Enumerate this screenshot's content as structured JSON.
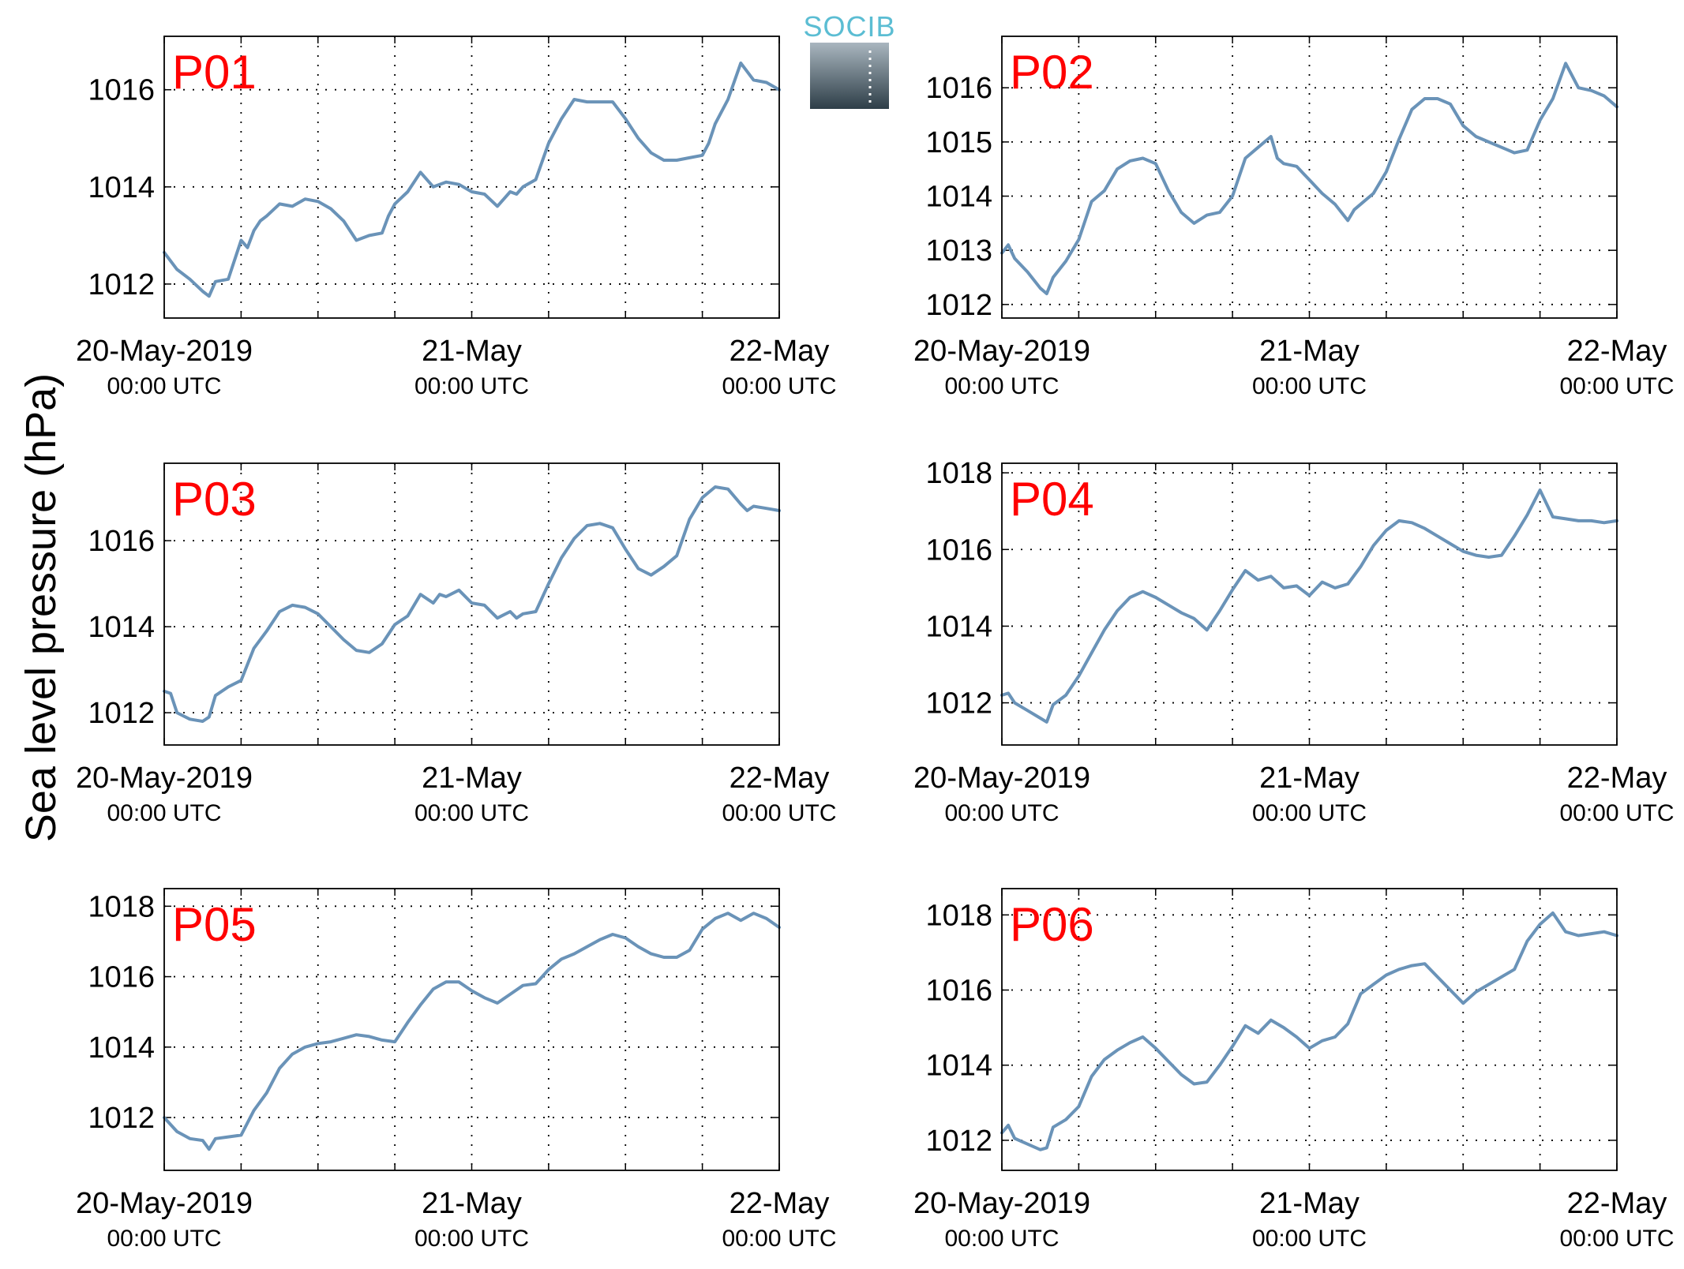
{
  "figure": {
    "ylabel": "Sea level pressure (hPa)",
    "logo": "SOCIB"
  },
  "colors": {
    "line": "#6a93b8",
    "title": "#ff0000",
    "grid": "#000000",
    "logo_text": "#5bbdd3",
    "logo_dark": "#2e3e48",
    "logo_light": "#a9b6bf"
  },
  "chart_data": [
    {
      "type": "line",
      "title": "P01",
      "x_unit": "hours since 20-May-2019 00:00 UTC",
      "xlim": [
        0,
        48
      ],
      "ylim": [
        1011.3,
        1017.1
      ],
      "yticks": [
        1012,
        1014,
        1016
      ],
      "xtick_labels": [
        {
          "date": "20-May-2019",
          "time": "00:00 UTC"
        },
        {
          "date": "21-May",
          "time": "00:00 UTC"
        },
        {
          "date": "22-May",
          "time": "00:00 UTC"
        }
      ],
      "grid": true,
      "x": [
        0,
        1,
        2,
        3,
        3.5,
        4,
        5,
        6,
        6.5,
        7,
        7.5,
        8,
        9,
        10,
        11,
        12,
        13,
        14,
        15,
        16,
        17,
        17.5,
        18,
        19,
        20,
        21,
        22,
        23,
        24,
        25,
        26,
        27,
        27.5,
        28,
        29,
        30,
        31,
        32,
        33,
        34,
        35,
        36,
        37,
        38,
        39,
        40,
        41,
        42,
        42.5,
        43,
        44,
        45,
        46,
        47,
        48
      ],
      "y": [
        1012.65,
        1012.3,
        1012.1,
        1011.85,
        1011.75,
        1012.05,
        1012.1,
        1012.9,
        1012.75,
        1013.1,
        1013.3,
        1013.4,
        1013.65,
        1013.6,
        1013.75,
        1013.7,
        1013.55,
        1013.3,
        1012.9,
        1013.0,
        1013.05,
        1013.4,
        1013.65,
        1013.9,
        1014.3,
        1014.0,
        1014.1,
        1014.05,
        1013.9,
        1013.85,
        1013.6,
        1013.9,
        1013.85,
        1014.0,
        1014.15,
        1014.9,
        1015.4,
        1015.8,
        1015.75,
        1015.75,
        1015.75,
        1015.4,
        1015.0,
        1014.7,
        1014.55,
        1014.55,
        1014.6,
        1014.65,
        1014.9,
        1015.3,
        1015.8,
        1016.55,
        1016.2,
        1016.15,
        1016.0
      ]
    },
    {
      "type": "line",
      "title": "P02",
      "x_unit": "hours since 20-May-2019 00:00 UTC",
      "xlim": [
        0,
        48
      ],
      "ylim": [
        1011.75,
        1016.95
      ],
      "yticks": [
        1012,
        1013,
        1014,
        1015,
        1016
      ],
      "xtick_labels": [
        {
          "date": "20-May-2019",
          "time": "00:00 UTC"
        },
        {
          "date": "21-May",
          "time": "00:00 UTC"
        },
        {
          "date": "22-May",
          "time": "00:00 UTC"
        }
      ],
      "grid": true,
      "x": [
        0,
        0.5,
        1,
        2,
        3,
        3.5,
        4,
        5,
        6,
        7,
        8,
        9,
        10,
        11,
        12,
        13,
        14,
        15,
        16,
        17,
        18,
        19,
        20,
        21,
        21.5,
        22,
        23,
        24,
        25,
        26,
        27,
        27.5,
        28,
        29,
        30,
        31,
        32,
        33,
        34,
        35,
        36,
        37,
        38,
        39,
        40,
        41,
        42,
        43,
        44,
        45,
        46,
        47,
        48
      ],
      "y": [
        1012.95,
        1013.1,
        1012.85,
        1012.6,
        1012.3,
        1012.2,
        1012.5,
        1012.8,
        1013.2,
        1013.9,
        1014.1,
        1014.5,
        1014.65,
        1014.7,
        1014.6,
        1014.1,
        1013.7,
        1013.5,
        1013.65,
        1013.7,
        1014.0,
        1014.7,
        1014.9,
        1015.1,
        1014.7,
        1014.6,
        1014.55,
        1014.3,
        1014.05,
        1013.85,
        1013.55,
        1013.75,
        1013.85,
        1014.05,
        1014.45,
        1015.05,
        1015.6,
        1015.8,
        1015.8,
        1015.7,
        1015.3,
        1015.1,
        1015.0,
        1014.9,
        1014.8,
        1014.85,
        1015.4,
        1015.8,
        1016.45,
        1016.0,
        1015.95,
        1015.85,
        1015.65
      ]
    },
    {
      "type": "line",
      "title": "P03",
      "x_unit": "hours since 20-May-2019 00:00 UTC",
      "xlim": [
        0,
        48
      ],
      "ylim": [
        1011.25,
        1017.8
      ],
      "yticks": [
        1012,
        1014,
        1016
      ],
      "xtick_labels": [
        {
          "date": "20-May-2019",
          "time": "00:00 UTC"
        },
        {
          "date": "21-May",
          "time": "00:00 UTC"
        },
        {
          "date": "22-May",
          "time": "00:00 UTC"
        }
      ],
      "grid": true,
      "x": [
        0,
        0.5,
        1,
        2,
        3,
        3.5,
        4,
        5,
        6,
        7,
        8,
        9,
        10,
        11,
        12,
        13,
        14,
        15,
        16,
        17,
        18,
        19,
        20,
        21,
        21.5,
        22,
        23,
        24,
        25,
        26,
        27,
        27.5,
        28,
        29,
        30,
        31,
        32,
        33,
        34,
        35,
        36,
        37,
        38,
        39,
        40,
        41,
        42,
        43,
        44,
        45,
        45.5,
        46,
        47,
        48
      ],
      "y": [
        1012.5,
        1012.45,
        1012.0,
        1011.85,
        1011.8,
        1011.9,
        1012.4,
        1012.6,
        1012.75,
        1013.5,
        1013.9,
        1014.35,
        1014.5,
        1014.45,
        1014.3,
        1014.0,
        1013.7,
        1013.45,
        1013.4,
        1013.6,
        1014.05,
        1014.25,
        1014.75,
        1014.55,
        1014.75,
        1014.7,
        1014.85,
        1014.55,
        1014.5,
        1014.2,
        1014.35,
        1014.2,
        1014.3,
        1014.35,
        1015.0,
        1015.6,
        1016.05,
        1016.35,
        1016.4,
        1016.3,
        1015.8,
        1015.35,
        1015.2,
        1015.4,
        1015.65,
        1016.5,
        1017.0,
        1017.25,
        1017.2,
        1016.85,
        1016.7,
        1016.8,
        1016.75,
        1016.7
      ]
    },
    {
      "type": "line",
      "title": "P04",
      "x_unit": "hours since 20-May-2019 00:00 UTC",
      "xlim": [
        0,
        48
      ],
      "ylim": [
        1010.9,
        1018.25
      ],
      "yticks": [
        1012,
        1014,
        1016,
        1018
      ],
      "xtick_labels": [
        {
          "date": "20-May-2019",
          "time": "00:00 UTC"
        },
        {
          "date": "21-May",
          "time": "00:00 UTC"
        },
        {
          "date": "22-May",
          "time": "00:00 UTC"
        }
      ],
      "grid": true,
      "x": [
        0,
        0.5,
        1,
        2,
        3,
        3.5,
        4,
        5,
        6,
        7,
        8,
        9,
        10,
        11,
        12,
        13,
        14,
        15,
        16,
        17,
        18,
        19,
        20,
        21,
        22,
        23,
        24,
        25,
        26,
        27,
        28,
        29,
        30,
        31,
        32,
        33,
        34,
        35,
        36,
        37,
        38,
        39,
        40,
        41,
        42,
        43,
        44,
        45,
        46,
        47,
        48
      ],
      "y": [
        1012.2,
        1012.25,
        1012.0,
        1011.8,
        1011.6,
        1011.5,
        1011.95,
        1012.2,
        1012.7,
        1013.3,
        1013.9,
        1014.4,
        1014.75,
        1014.9,
        1014.75,
        1014.55,
        1014.35,
        1014.2,
        1013.9,
        1014.4,
        1014.95,
        1015.45,
        1015.2,
        1015.3,
        1015.0,
        1015.05,
        1014.8,
        1015.15,
        1015.0,
        1015.1,
        1015.55,
        1016.1,
        1016.5,
        1016.75,
        1016.7,
        1016.55,
        1016.35,
        1016.15,
        1015.95,
        1015.85,
        1015.8,
        1015.85,
        1016.35,
        1016.9,
        1017.55,
        1016.85,
        1016.8,
        1016.75,
        1016.75,
        1016.7,
        1016.75
      ]
    },
    {
      "type": "line",
      "title": "P05",
      "x_unit": "hours since 20-May-2019 00:00 UTC",
      "xlim": [
        0,
        48
      ],
      "ylim": [
        1010.5,
        1018.5
      ],
      "yticks": [
        1012,
        1014,
        1016,
        1018
      ],
      "xtick_labels": [
        {
          "date": "20-May-2019",
          "time": "00:00 UTC"
        },
        {
          "date": "21-May",
          "time": "00:00 UTC"
        },
        {
          "date": "22-May",
          "time": "00:00 UTC"
        }
      ],
      "grid": true,
      "x": [
        0,
        1,
        2,
        3,
        3.5,
        4,
        5,
        6,
        7,
        8,
        9,
        10,
        11,
        12,
        13,
        14,
        15,
        16,
        17,
        18,
        19,
        20,
        21,
        22,
        23,
        24,
        25,
        26,
        27,
        28,
        29,
        30,
        31,
        32,
        33,
        34,
        35,
        36,
        37,
        38,
        39,
        40,
        41,
        42,
        43,
        44,
        45,
        46,
        47,
        48
      ],
      "y": [
        1012.0,
        1011.6,
        1011.4,
        1011.35,
        1011.1,
        1011.4,
        1011.45,
        1011.5,
        1012.2,
        1012.7,
        1013.4,
        1013.8,
        1014.0,
        1014.1,
        1014.15,
        1014.25,
        1014.35,
        1014.3,
        1014.2,
        1014.15,
        1014.7,
        1015.2,
        1015.65,
        1015.85,
        1015.85,
        1015.6,
        1015.4,
        1015.25,
        1015.5,
        1015.75,
        1015.8,
        1016.2,
        1016.5,
        1016.65,
        1016.85,
        1017.05,
        1017.2,
        1017.1,
        1016.85,
        1016.65,
        1016.55,
        1016.55,
        1016.75,
        1017.35,
        1017.65,
        1017.8,
        1017.6,
        1017.8,
        1017.65,
        1017.4
      ]
    },
    {
      "type": "line",
      "title": "P06",
      "x_unit": "hours since 20-May-2019 00:00 UTC",
      "xlim": [
        0,
        48
      ],
      "ylim": [
        1011.2,
        1018.7
      ],
      "yticks": [
        1012,
        1014,
        1016,
        1018
      ],
      "xtick_labels": [
        {
          "date": "20-May-2019",
          "time": "00:00 UTC"
        },
        {
          "date": "21-May",
          "time": "00:00 UTC"
        },
        {
          "date": "22-May",
          "time": "00:00 UTC"
        }
      ],
      "grid": true,
      "x": [
        0,
        0.5,
        1,
        2,
        3,
        3.5,
        4,
        5,
        6,
        7,
        8,
        9,
        10,
        11,
        12,
        13,
        14,
        15,
        16,
        17,
        18,
        19,
        20,
        21,
        22,
        23,
        24,
        25,
        26,
        27,
        28,
        29,
        30,
        31,
        32,
        33,
        34,
        35,
        36,
        37,
        38,
        39,
        40,
        41,
        42,
        43,
        44,
        45,
        46,
        47,
        48
      ],
      "y": [
        1012.2,
        1012.4,
        1012.05,
        1011.9,
        1011.75,
        1011.8,
        1012.35,
        1012.55,
        1012.9,
        1013.7,
        1014.15,
        1014.4,
        1014.6,
        1014.75,
        1014.45,
        1014.1,
        1013.75,
        1013.5,
        1013.55,
        1014.0,
        1014.5,
        1015.05,
        1014.85,
        1015.2,
        1015.0,
        1014.75,
        1014.45,
        1014.65,
        1014.75,
        1015.1,
        1015.9,
        1016.15,
        1016.4,
        1016.55,
        1016.65,
        1016.7,
        1016.35,
        1016.0,
        1015.65,
        1015.95,
        1016.15,
        1016.35,
        1016.55,
        1017.3,
        1017.75,
        1018.05,
        1017.55,
        1017.45,
        1017.5,
        1017.55,
        1017.45
      ]
    }
  ]
}
